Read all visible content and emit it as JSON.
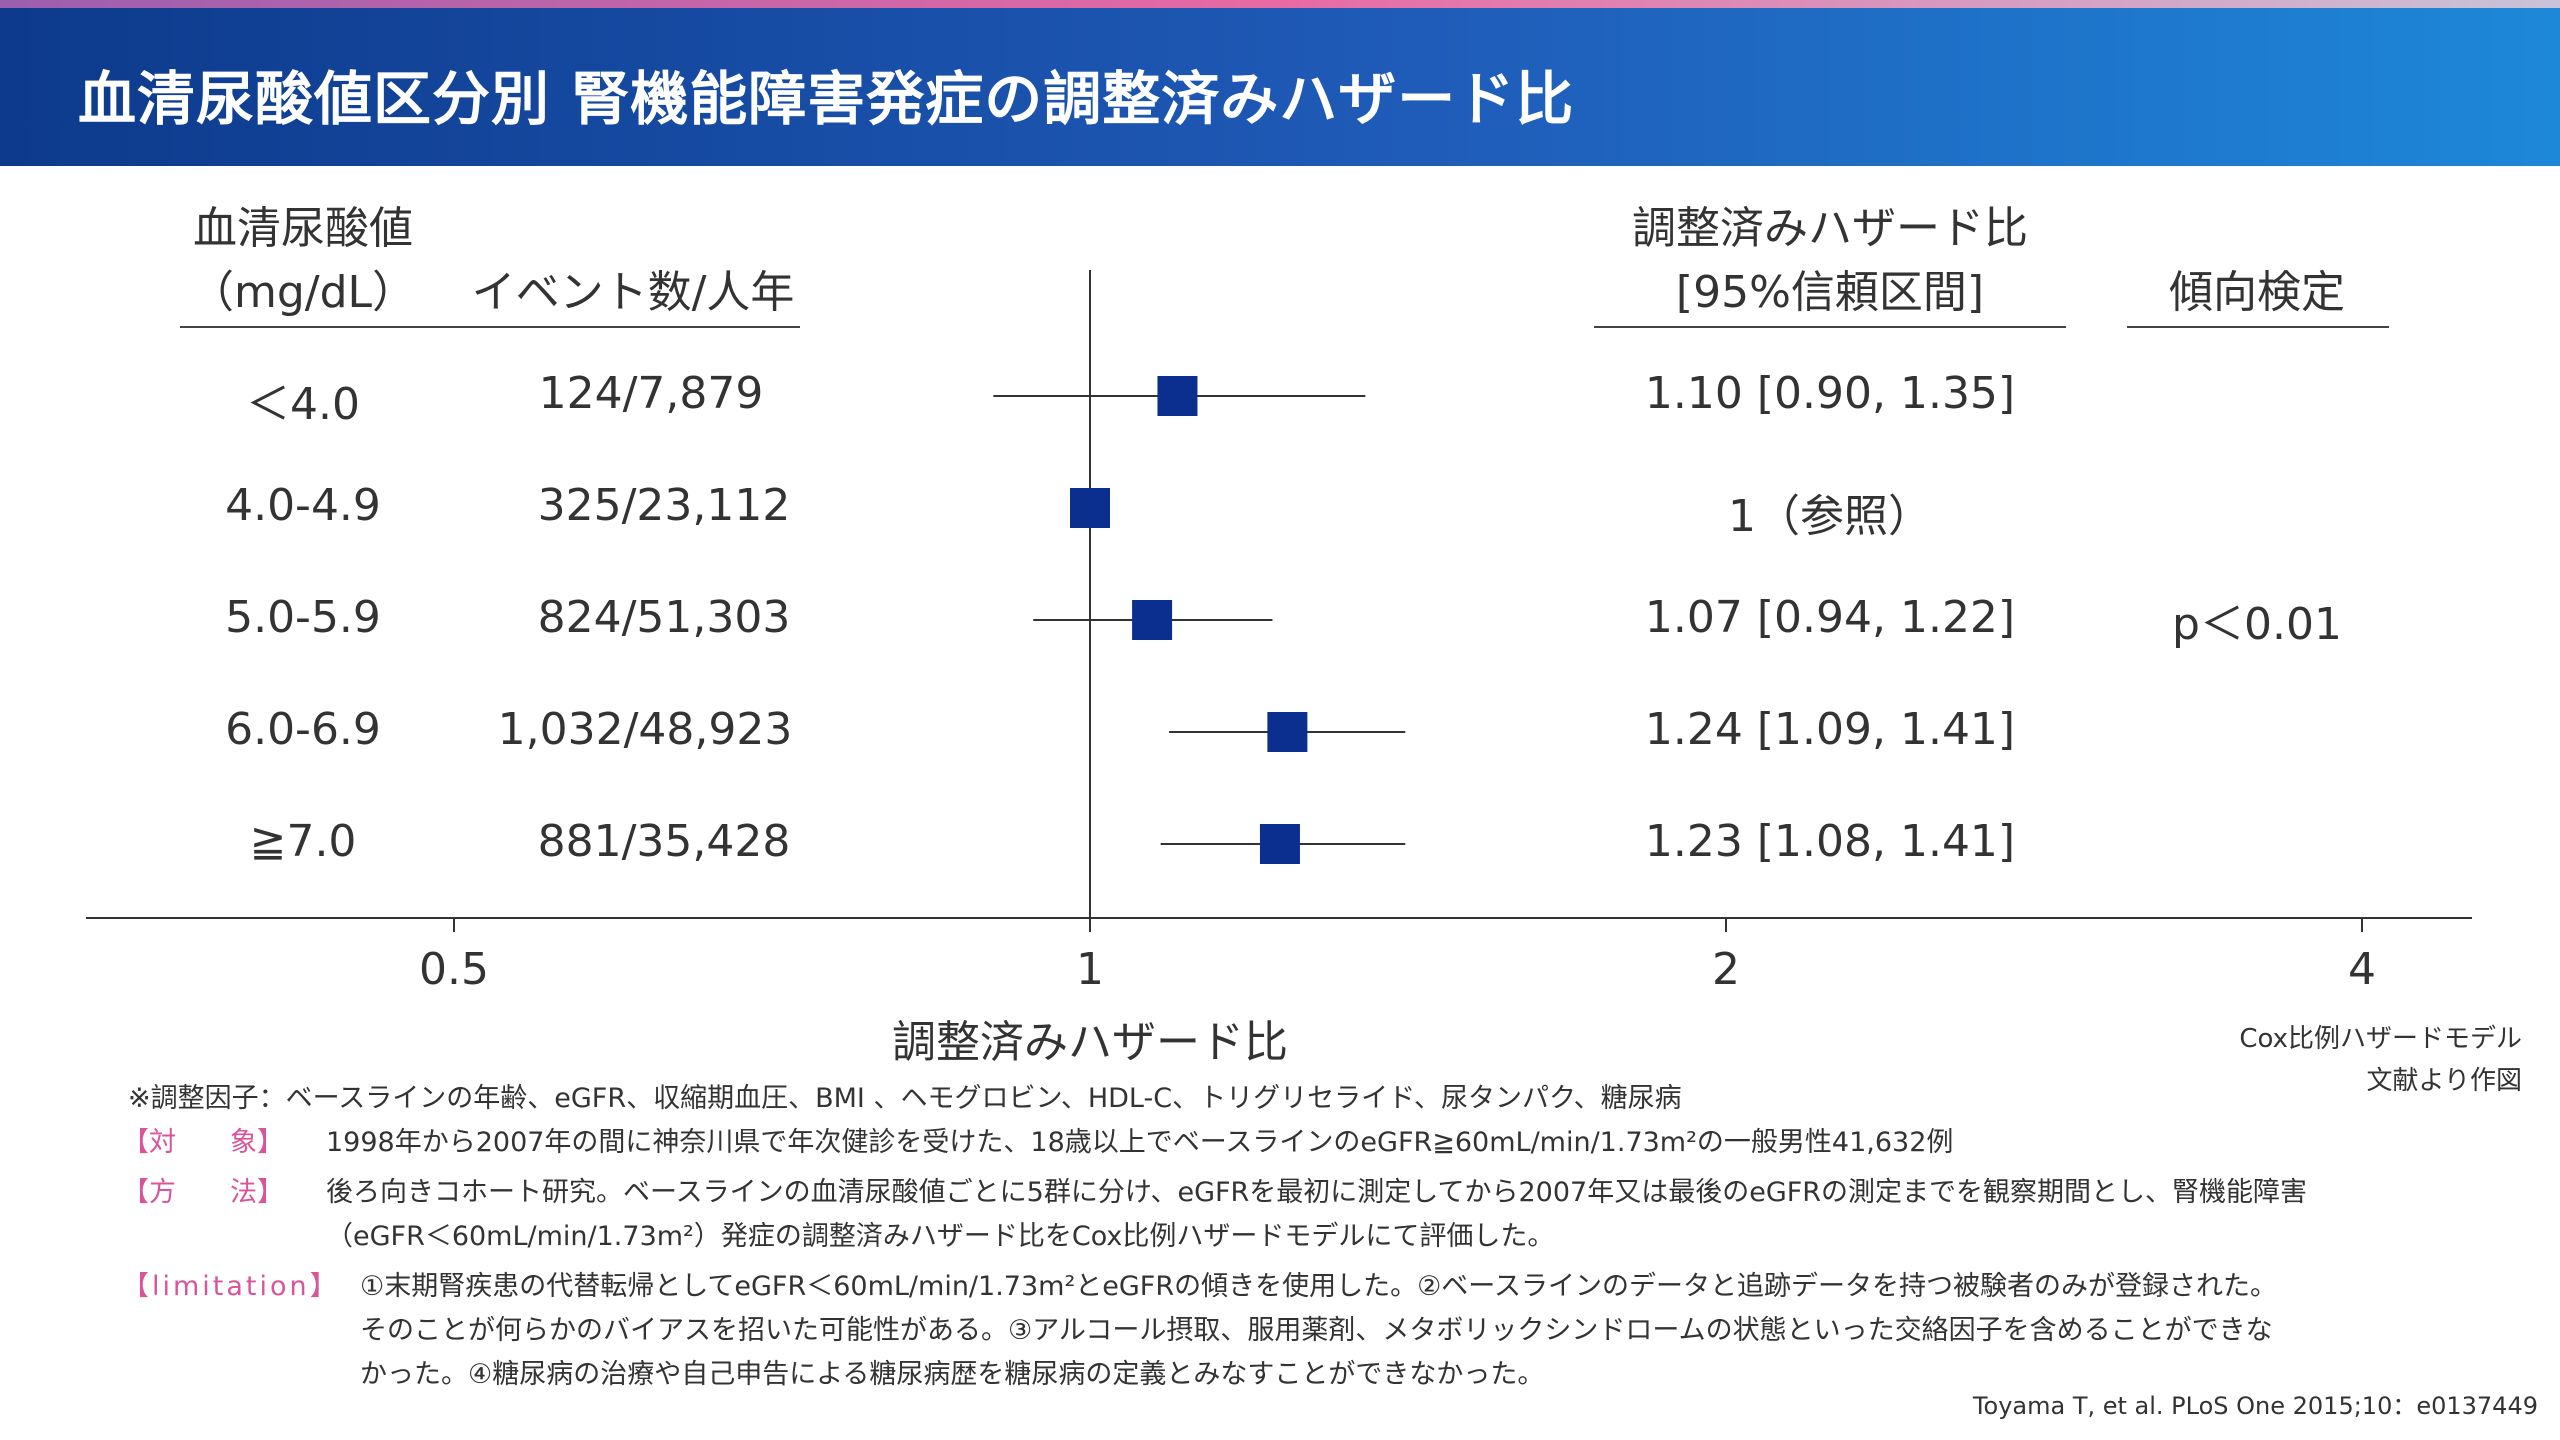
{
  "title": "血清尿酸値区分別 腎機能障害発症の調整済みハザード比",
  "table": {
    "col1_line1": "血清尿酸値",
    "col1_line2": "（mg/dL）",
    "col2_header": "イベント数/人年",
    "hr_line1": "調整済みハザード比",
    "hr_line2": "[95%信頼区間]",
    "trend_header": "傾向検定",
    "trend_value": "p＜0.01",
    "rows": [
      {
        "category": "＜4.0",
        "events": "124/7,879",
        "hr_text": "1.10 [0.90, 1.35]"
      },
      {
        "category": "4.0-4.9",
        "events": "325/23,112",
        "hr_text": "1（参照）"
      },
      {
        "category": "5.0-5.9",
        "events": "824/51,303",
        "hr_text": "1.07 [0.94, 1.22]"
      },
      {
        "category": "6.0-6.9",
        "events": "1,032/48,923",
        "hr_text": "1.24 [1.09, 1.41]"
      },
      {
        "category": "≧7.0",
        "events": "881/35,428",
        "hr_text": "1.23 [1.08, 1.41]"
      }
    ]
  },
  "chart_data": {
    "type": "forest",
    "x_scale": "log",
    "xlabel": "調整済みハザード比",
    "x_ticks": [
      0.5,
      1,
      2,
      4
    ],
    "x_tick_labels": [
      "0.5",
      "1",
      "2",
      "4"
    ],
    "reference_line": 1,
    "marker_color": "#0a2f8f",
    "categories": [
      "＜4.0",
      "4.0-4.9",
      "5.0-5.9",
      "6.0-6.9",
      "≧7.0"
    ],
    "points": [
      {
        "hr": 1.1,
        "low": 0.9,
        "high": 1.35
      },
      {
        "hr": 1.0,
        "low": null,
        "high": null
      },
      {
        "hr": 1.07,
        "low": 0.94,
        "high": 1.22
      },
      {
        "hr": 1.24,
        "low": 1.09,
        "high": 1.41
      },
      {
        "hr": 1.23,
        "low": 1.08,
        "high": 1.41
      }
    ]
  },
  "model_note": "Cox比例ハザードモデル",
  "source_note": "文献より作図",
  "footnotes": {
    "adjust": "※調整因子：ベースラインの年齢、eGFR、収縮期血圧、BMI 、ヘモグロビン、HDL-C、トリグリセライド、尿タンパク、糖尿病",
    "target_label": "【対　　象】",
    "target_text": "1998年から2007年の間に神奈川県で年次健診を受けた、18歳以上でベースラインのeGFR≧60mL/min/1.73m²の一般男性41,632例",
    "method_label": "【方　　法】",
    "method_text1": "後ろ向きコホート研究。ベースラインの血清尿酸値ごとに5群に分け、eGFRを最初に測定してから2007年又は最後のeGFRの測定までを観察期間とし、腎機能障害",
    "method_text2": "（eGFR＜60mL/min/1.73m²）発症の調整済みハザード比をCox比例ハザードモデルにて評価した。",
    "limitation_label": "【limitation】",
    "limitation_text1": "①末期腎疾患の代替転帰としてeGFR＜60mL/min/1.73m²とeGFRの傾きを使用した。②ベースラインのデータと追跡データを持つ被験者のみが登録された。",
    "limitation_text2": "そのことが何らかのバイアスを招いた可能性がある。③アルコール摂取、服用薬剤、メタボリックシンドロームの状態といった交絡因子を含めることができな",
    "limitation_text3": "かった。④糖尿病の治療や自己申告による糖尿病歴を糖尿病の定義とみなすことができなかった。"
  },
  "citation": "Toyama T, et al. PLoS One 2015;10：e0137449"
}
